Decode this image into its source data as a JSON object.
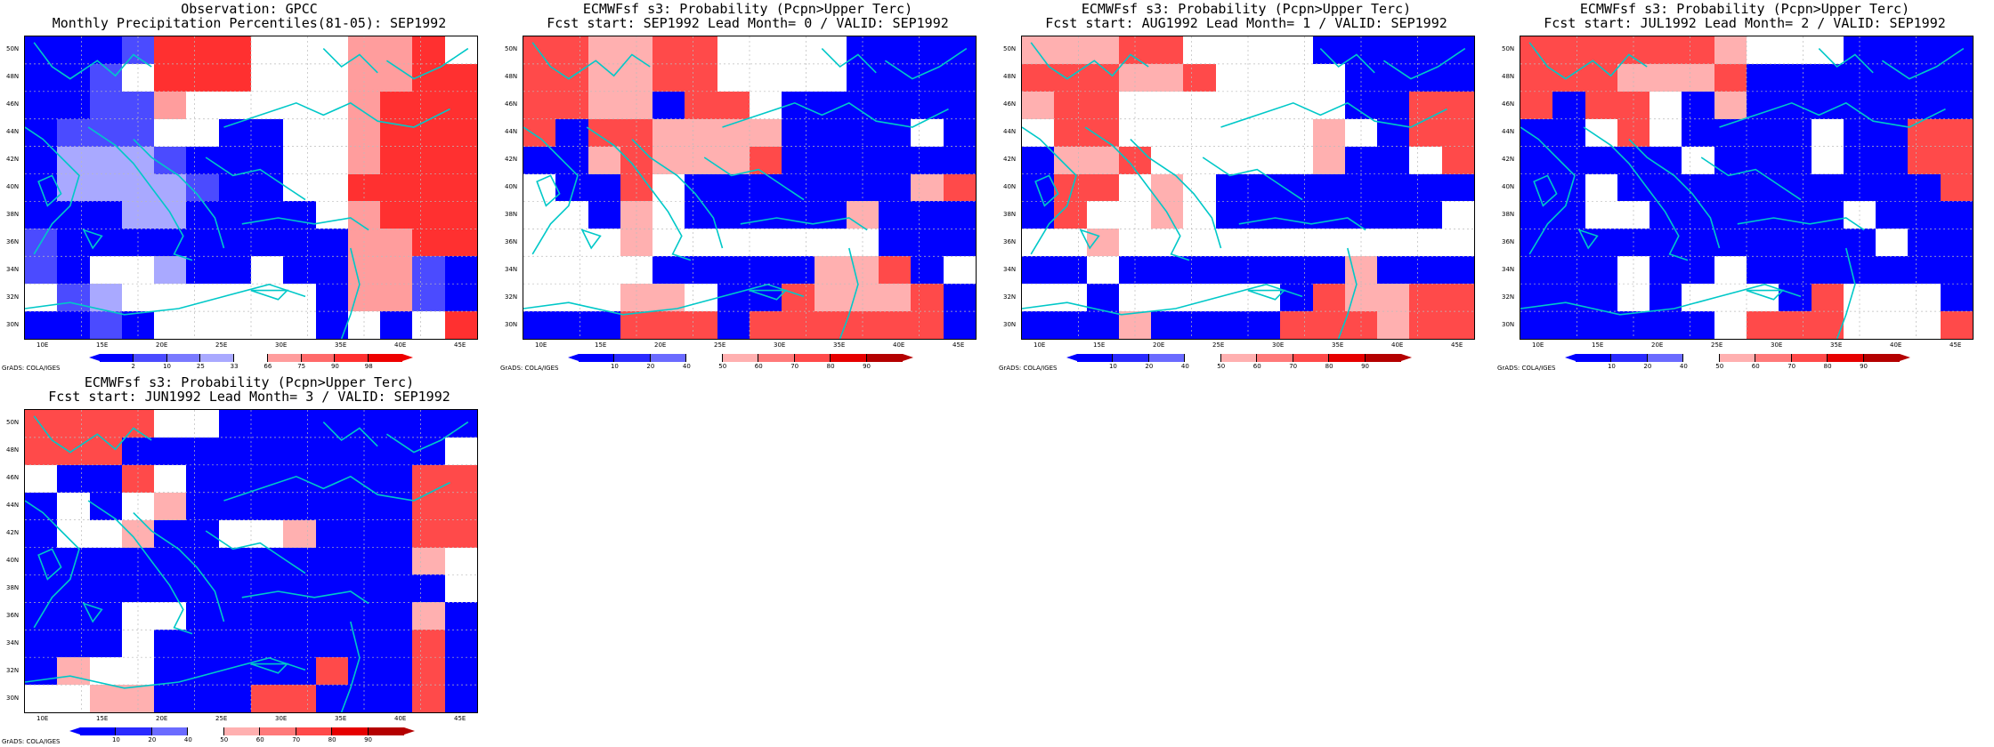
{
  "panels": [
    {
      "title1": "Observation: GPCC",
      "title2": "Monthly Precipitation Percentiles(81-05): SEP1992",
      "cbar_labels": [
        "2",
        "10",
        "25",
        "33",
        "66",
        "75",
        "90",
        "98"
      ],
      "cbar_colors": [
        "#0000ff",
        "#4b4bff",
        "#7a7aff",
        "#a9a9ff",
        "#ffffff",
        "#ff9d9d",
        "#ff6a6a",
        "#ff3030",
        "#ee0000"
      ],
      "grid": [
        "BBBCRRRWWWPPRW",
        "BBCWRRRWWWPPRR",
        "BBCCPWWWWWPRRR",
        "BCCCWWBBWWPRRR",
        "BDDDCBBBWWPRRR",
        "BDDDDCBBWWRRRR",
        "BBBDDBBBBWPRRR",
        "CBBBBBBBBBPPRR",
        "CBWWDBBWBBPPCB",
        "WCDWWWWWWBPPCB",
        "BBCBWWWWWBWBWR"
      ]
    },
    {
      "title1": "ECMWFsf s3: Probability (Pcpn>Upper Terc)",
      "title2": "Fcst start: SEP1992  Lead Month= 0 / VALID: SEP1992",
      "cbar_labels": [
        "10",
        "20",
        "40",
        "50",
        "60",
        "70",
        "80",
        "90"
      ],
      "cbar_colors": [
        "#0000ff",
        "#2a2aff",
        "#6b6bff",
        "#ffffff",
        "#ffb0b0",
        "#ff7a7a",
        "#ff4a4a",
        "#e60000",
        "#b40000"
      ],
      "grid": [
        "RRPPRRWWWWBBBB",
        "RRPPRRWWWWBBBB",
        "RRPPBRRWBBBBBB",
        "RBRRPPPPBBBBWB",
        "BBPRPPPRBBBBBB",
        "WBBRWBBBBBBBPR",
        "WWBPWBBBBBPBBB",
        "WWWPWWWWWWWBBB",
        "WWWWBBBBBPPRBW",
        "WWWPPWBBRPPPRB",
        "BBBRRRBRRRRRRB"
      ]
    },
    {
      "title1": "ECMWFsf s3: Probability (Pcpn>Upper Terc)",
      "title2": "Fcst start: AUG1992  Lead Month= 1 / VALID: SEP1992",
      "cbar_labels": [
        "10",
        "20",
        "40",
        "50",
        "60",
        "70",
        "80",
        "90"
      ],
      "cbar_colors": [
        "#0000ff",
        "#2a2aff",
        "#6b6bff",
        "#ffffff",
        "#ffb0b0",
        "#ff7a7a",
        "#ff4a4a",
        "#e60000",
        "#b40000"
      ],
      "grid": [
        "PPPRRWWWWBBBBB",
        "RRRPPRWWWWBBBB",
        "PRRWWWWWWWBBRR",
        "WRRWWWWWWPWBRR",
        "BPPRWWWWWPBBWR",
        "BRRWPWBBBBBBBB",
        "BRWWPWBBBBBBBW",
        "WWPWWWWWWWWWWW",
        "BBWBBBBBBBPBBB",
        "WWBWWWWWBRPPRR",
        "BBBPBBBBRRRPRR"
      ]
    },
    {
      "title1": "ECMWFsf s3: Probability (Pcpn>Upper Terc)",
      "title2": "Fcst start: JUL1992  Lead Month= 2 / VALID: SEP1992",
      "cbar_labels": [
        "10",
        "20",
        "40",
        "50",
        "60",
        "70",
        "80",
        "90"
      ],
      "cbar_colors": [
        "#0000ff",
        "#2a2aff",
        "#6b6bff",
        "#ffffff",
        "#ffb0b0",
        "#ff7a7a",
        "#ff4a4a",
        "#e60000",
        "#b40000"
      ],
      "grid": [
        "RRRRRRPWWWBBBB",
        "RRRPPPRBBBBBBB",
        "RBRRWBPBBBBBBB",
        "BBWRWBBBBWBBRR",
        "BBBBBWBBBWBBRR",
        "BBWBBBBBBBBBBR",
        "BBWWBBBBBBWBBB",
        "BBBBBBBBBBBWBB",
        "BBBWBBWBBBBBBB",
        "BBBWBWWWBRWWWB",
        "BBBBBBWRRRWWWR"
      ]
    },
    {
      "title1": "ECMWFsf s3: Probability (Pcpn>Upper Terc)",
      "title2": "Fcst start: JUN1992  Lead Month= 3 / VALID: SEP1992",
      "cbar_labels": [
        "10",
        "20",
        "40",
        "50",
        "60",
        "70",
        "80",
        "90"
      ],
      "cbar_colors": [
        "#0000ff",
        "#2a2aff",
        "#6b6bff",
        "#ffffff",
        "#ffb0b0",
        "#ff7a7a",
        "#ff4a4a",
        "#e60000",
        "#b40000"
      ],
      "grid": [
        "RRRRWWBBBBBBBB",
        "RRRBBBBBBBBBBW",
        "WBBRWBBBBBBBRR",
        "BWBWPBBBBBBBRR",
        "BWWPBBWWPBBBRR",
        "BBBBBBBBBBBBPW",
        "BBBBBBBBBBBBBW",
        "BBBWWBBBBBBBPB",
        "BBBWBBBBBBBBRB",
        "BPWWBBBBBRBBRB",
        "WWPPBBBRRBBBRB"
      ]
    }
  ],
  "lat_labels": [
    "50N",
    "48N",
    "46N",
    "44N",
    "42N",
    "40N",
    "38N",
    "36N",
    "34N",
    "32N",
    "30N"
  ],
  "lon_labels": [
    "10E",
    "15E",
    "20E",
    "25E",
    "30E",
    "35E",
    "40E",
    "45E"
  ],
  "credit": "GrADS: COLA/IGES",
  "colors": {
    "coast": "#00c8c8",
    "grid_line": "#bbbbbb"
  }
}
